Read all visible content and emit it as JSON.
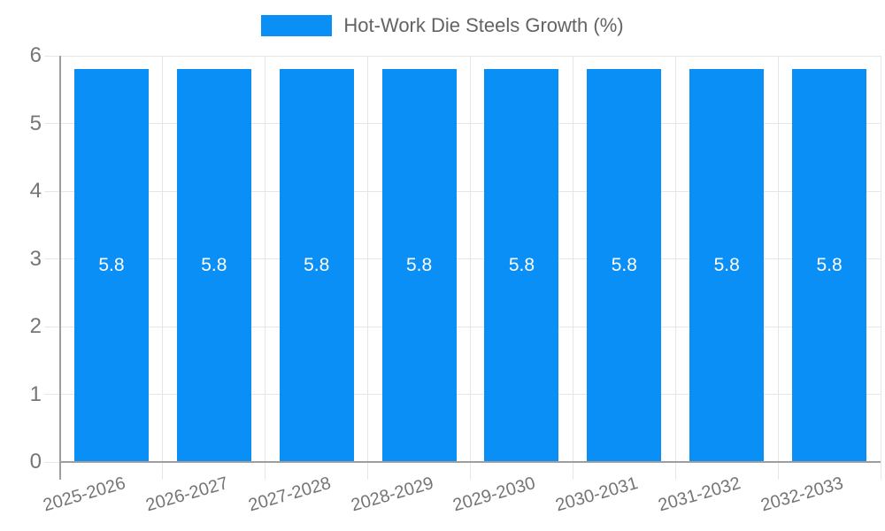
{
  "chart_data": {
    "type": "bar",
    "title": "",
    "legend": "Hot-Work Die Steels Growth (%)",
    "legend_position": "top",
    "categories": [
      "2025-2026",
      "2026-2027",
      "2027-2028",
      "2028-2029",
      "2029-2030",
      "2030-2031",
      "2031-2032",
      "2032-2033"
    ],
    "values": [
      5.8,
      5.8,
      5.8,
      5.8,
      5.8,
      5.8,
      5.8,
      5.8
    ],
    "value_labels": [
      "5.8",
      "5.8",
      "5.8",
      "5.8",
      "5.8",
      "5.8",
      "5.8",
      "5.8"
    ],
    "xlabel": "",
    "ylabel": "",
    "ylim": [
      0,
      6
    ],
    "yticks": [
      0,
      1,
      2,
      3,
      4,
      5,
      6
    ],
    "grid": true,
    "colors": {
      "bar": "#0a8ff7",
      "grid": "#e6e6e6",
      "axis": "#9e9e9e",
      "tick_label": "#757575",
      "legend_label": "#636363",
      "value_label": "#ffffff",
      "background": "#ffffff"
    }
  }
}
